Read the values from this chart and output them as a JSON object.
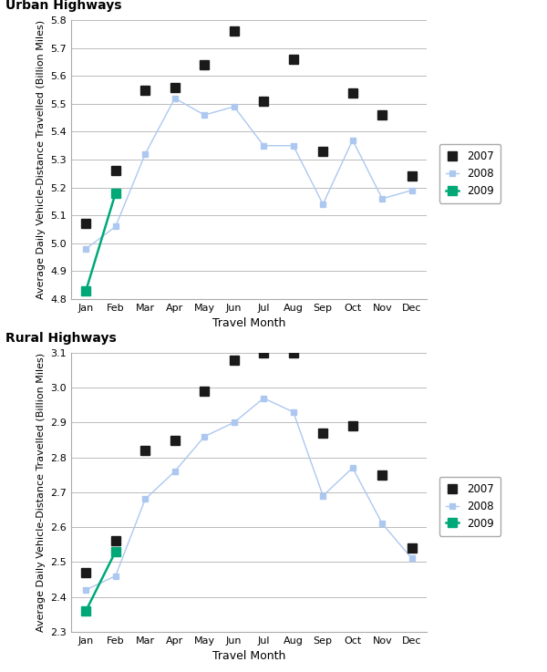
{
  "months": [
    "Jan",
    "Feb",
    "Mar",
    "Apr",
    "May",
    "Jun",
    "Jul",
    "Aug",
    "Sep",
    "Oct",
    "Nov",
    "Dec"
  ],
  "urban_2007": [
    5.07,
    5.26,
    5.55,
    5.56,
    5.64,
    5.76,
    5.51,
    5.66,
    5.33,
    5.54,
    5.46,
    5.24
  ],
  "urban_2008": [
    4.98,
    5.06,
    5.32,
    5.52,
    5.46,
    5.49,
    5.35,
    5.35,
    5.14,
    5.37,
    5.16,
    5.19
  ],
  "urban_2009": [
    4.83,
    5.18
  ],
  "rural_2007": [
    2.47,
    2.56,
    2.82,
    2.85,
    2.99,
    3.08,
    3.1,
    3.1,
    2.87,
    2.89,
    2.75,
    2.54
  ],
  "rural_2008": [
    2.42,
    2.46,
    2.68,
    2.76,
    2.86,
    2.9,
    2.97,
    2.93,
    2.69,
    2.77,
    2.61,
    2.51
  ],
  "rural_2009": [
    2.36,
    2.53
  ],
  "urban_ylim": [
    4.8,
    5.8
  ],
  "urban_yticks": [
    4.8,
    4.9,
    5.0,
    5.1,
    5.2,
    5.3,
    5.4,
    5.5,
    5.6,
    5.7,
    5.8
  ],
  "rural_ylim": [
    2.3,
    3.1
  ],
  "rural_yticks": [
    2.3,
    2.4,
    2.5,
    2.6,
    2.7,
    2.8,
    2.9,
    3.0,
    3.1
  ],
  "color_2007": "#1a1a1a",
  "color_2008": "#adc8f0",
  "color_2009": "#00a878",
  "title_urban": "Urban Highways",
  "title_rural": "Rural Highways",
  "xlabel": "Travel Month",
  "ylabel": "Average Daily Vehicle-Distance Travelled (Billion Miles)",
  "markersize_2007": 7,
  "markersize_2008": 5,
  "markersize_2009": 7,
  "linewidth_2008": 1.0,
  "linewidth_2009": 1.8
}
